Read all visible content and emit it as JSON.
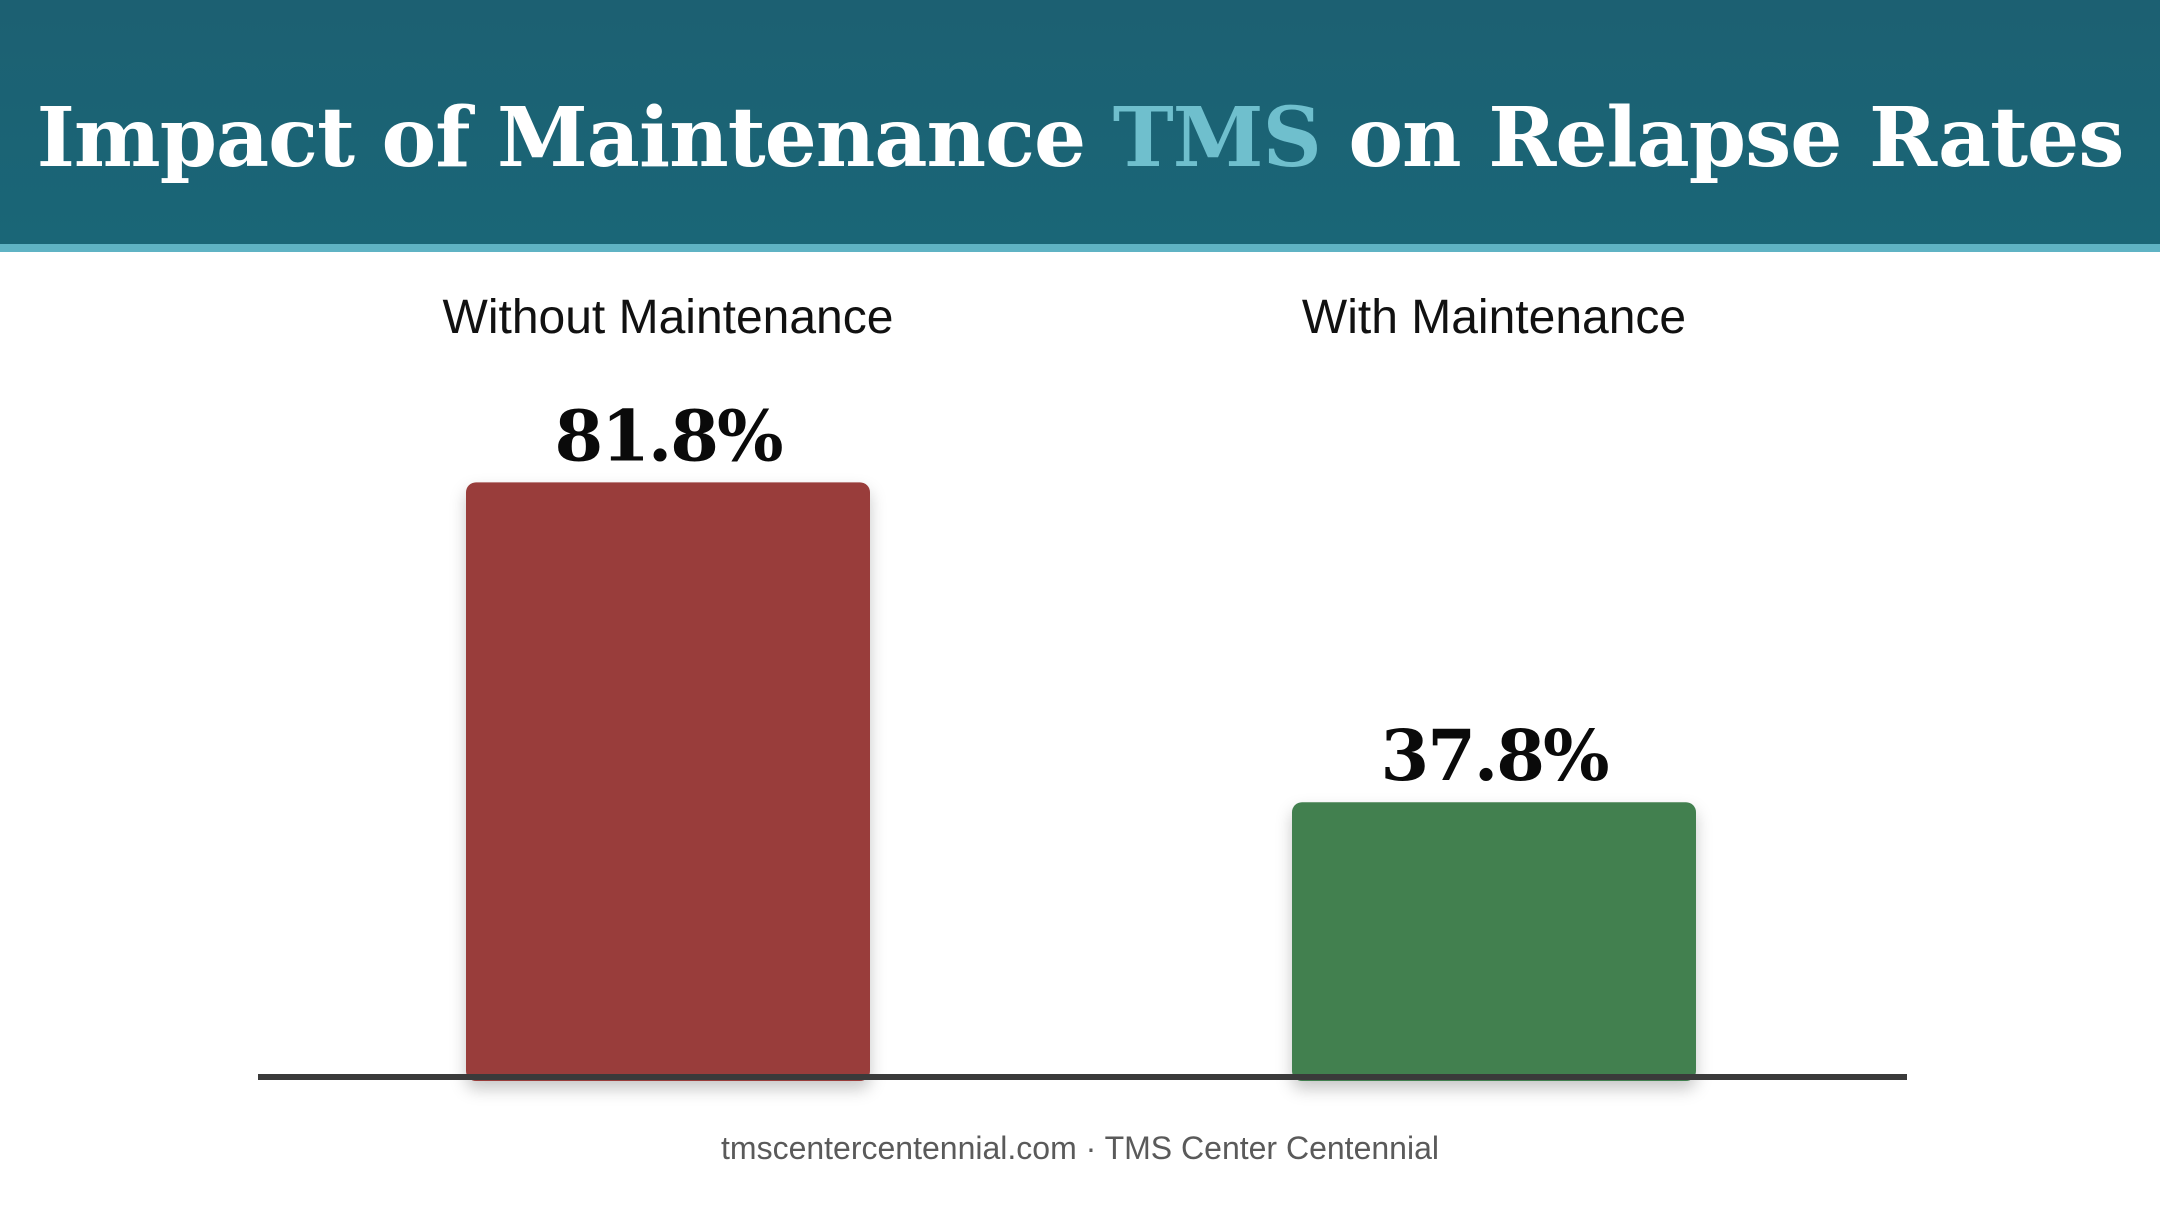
{
  "header": {
    "title_before": "Impact of Maintenance ",
    "title_accent": "TMS",
    "title_after": " on Relapse Rates"
  },
  "colors": {
    "header_bg": "#1a6677",
    "accent": "#6fbfcd",
    "bar_without": "#993d3b",
    "bar_with": "#438050"
  },
  "chart_data": {
    "type": "bar",
    "title": "Impact of Maintenance TMS on Relapse Rates",
    "categories": [
      "Without Maintenance",
      "With Maintenance"
    ],
    "values": [
      81.8,
      37.8
    ],
    "value_labels": [
      "81.8%",
      "37.8%"
    ],
    "unit": "%",
    "ylim": [
      0,
      100
    ],
    "grid": false,
    "colors": [
      "#993d3b",
      "#438050"
    ]
  },
  "footer": {
    "text": "tmscentercentennial.com · TMS Center Centennial"
  }
}
